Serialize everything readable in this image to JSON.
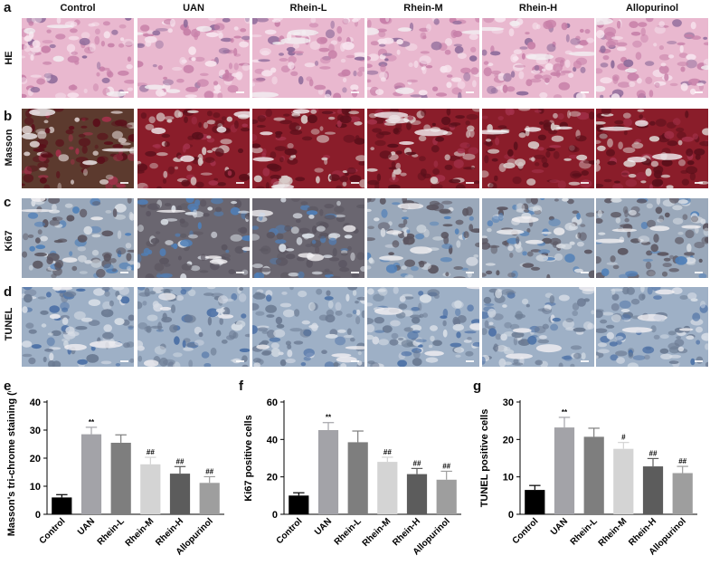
{
  "figure": {
    "columns": [
      "Control",
      "UAN",
      "Rhein-L",
      "Rhein-M",
      "Rhein-H",
      "Allopurinol"
    ],
    "rows": [
      {
        "letter": "a",
        "label": "HE",
        "stain": "he"
      },
      {
        "letter": "b",
        "label": "Masson",
        "stain": "masson"
      },
      {
        "letter": "c",
        "label": "Ki67",
        "stain": "ki67"
      },
      {
        "letter": "d",
        "label": "TUNEL",
        "stain": "tunel"
      }
    ]
  },
  "chart_data": [
    {
      "type": "bar",
      "letter": "e",
      "categories": [
        "Control",
        "UAN",
        "Rhein-L",
        "Rhein-M",
        "Rhein-H",
        "Allopurinol"
      ],
      "values": [
        6,
        28.5,
        25.5,
        17.8,
        14.5,
        11.2
      ],
      "errors": [
        1,
        2.5,
        2.8,
        2.5,
        2.5,
        2.2
      ],
      "annotations": [
        "",
        "**",
        "",
        "##",
        "##",
        "##"
      ],
      "ylabel": "Masson's tri-chrome staining (%)",
      "ylim": [
        0,
        40
      ],
      "yticks": [
        0,
        10,
        20,
        30,
        40
      ],
      "colors": [
        "#000000",
        "#a3a3a8",
        "#7e7e7e",
        "#d4d4d4",
        "#5c5c5c",
        "#9e9e9e"
      ]
    },
    {
      "type": "bar",
      "letter": "f",
      "categories": [
        "Control",
        "UAN",
        "Rhein-L",
        "Rhein-M",
        "Rhein-H",
        "Allopurinol"
      ],
      "values": [
        10,
        45,
        38.5,
        28,
        21.5,
        18.5
      ],
      "errors": [
        1.5,
        4,
        6,
        2.5,
        3,
        4.5
      ],
      "annotations": [
        "",
        "**",
        "",
        "##",
        "##",
        "##"
      ],
      "ylabel": "Ki67 positive cells",
      "ylim": [
        0,
        60
      ],
      "yticks": [
        0,
        20,
        40,
        60
      ],
      "colors": [
        "#000000",
        "#a3a3a8",
        "#7e7e7e",
        "#d4d4d4",
        "#5c5c5c",
        "#9e9e9e"
      ]
    },
    {
      "type": "bar",
      "letter": "g",
      "categories": [
        "Control",
        "UAN",
        "Rhein-L",
        "Rhein-M",
        "Rhein-H",
        "Allopurinol"
      ],
      "values": [
        6.5,
        23.2,
        20.7,
        17.5,
        12.8,
        11
      ],
      "errors": [
        1.2,
        2.7,
        2.3,
        1.7,
        2.1,
        1.8
      ],
      "annotations": [
        "",
        "**",
        "",
        "#",
        "##",
        "##"
      ],
      "ylabel": "TUNEL positive cells",
      "ylim": [
        0,
        30
      ],
      "yticks": [
        0,
        10,
        20,
        30
      ],
      "colors": [
        "#000000",
        "#a3a3a8",
        "#7e7e7e",
        "#d4d4d4",
        "#5c5c5c",
        "#9e9e9e"
      ]
    }
  ]
}
